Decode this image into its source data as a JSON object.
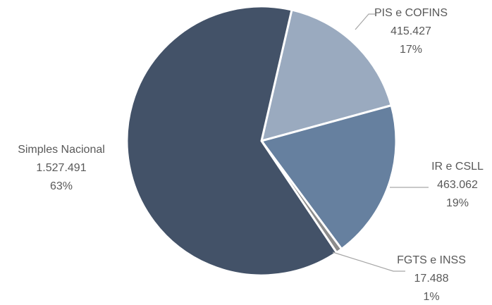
{
  "chart_data": {
    "type": "pie",
    "title": "",
    "slices": [
      {
        "label": "PIS e COFINS",
        "value_text": "415.427",
        "percent_text": "17%",
        "value": 415427,
        "color": "#9aaabf"
      },
      {
        "label": "IR e CSLL",
        "value_text": "463.062",
        "percent_text": "19%",
        "value": 463062,
        "color": "#66809f"
      },
      {
        "label": "FGTS e INSS",
        "value_text": "17.488",
        "percent_text": "1%",
        "value": 17488,
        "color": "#8c8c8c"
      },
      {
        "label": "Simples Nacional",
        "value_text": "1.527.491",
        "percent_text": "63%",
        "value": 1527491,
        "color": "#435268"
      }
    ]
  }
}
